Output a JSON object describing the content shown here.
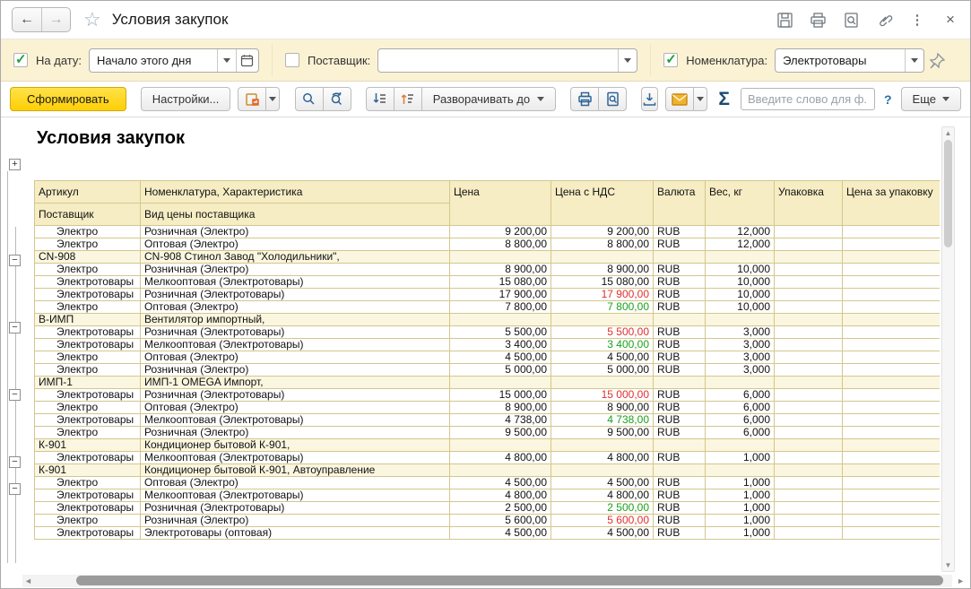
{
  "icons": {
    "back": "←",
    "forward": "→",
    "star": "☆",
    "menu": "⋮",
    "close": "×",
    "sigma": "Σ",
    "help": "?",
    "plus": "+",
    "minus": "−",
    "vscroll_up": "▲",
    "vscroll_down": "▼",
    "hscroll_left": "◄",
    "hscroll_right": "►"
  },
  "titlebar": {
    "title": "Условия закупок"
  },
  "filters": {
    "date": {
      "checked": true,
      "label": "На дату:",
      "value": "Начало этого дня"
    },
    "supplier": {
      "checked": false,
      "label": "Поставщик:",
      "value": ""
    },
    "nomenclature": {
      "checked": true,
      "label": "Номенклатура:",
      "value": "Электротовары"
    }
  },
  "toolbar": {
    "generate": "Сформировать",
    "settings": "Настройки...",
    "expand_to": "Разворачивать до",
    "search_placeholder": "Введите слово для ф...",
    "help": "?",
    "more": "Еще"
  },
  "report": {
    "title": "Условия закупок",
    "columns": [
      "Артикул",
      "Номенклатура, Характеристика",
      "Цена",
      "Цена с НДС",
      "Валюта",
      "Вес, кг",
      "Упаковка",
      "Цена за упаковку"
    ],
    "columns_row2": [
      "Поставщик",
      "Вид цены поставщика"
    ],
    "colors": {
      "red_price": "#e02f2f",
      "green_price": "#1aa11a",
      "accent_yellow": "#ffd600"
    },
    "rows": [
      {
        "t": "d",
        "c1": "Электро",
        "c2": "Розничная (Электро)",
        "price": "9 200,00",
        "vat": "9 200,00",
        "vs": "",
        "cur": "RUB",
        "w": "12,000"
      },
      {
        "t": "d",
        "c1": "Электро",
        "c2": "Оптовая (Электро)",
        "price": "8 800,00",
        "vat": "8 800,00",
        "vs": "",
        "cur": "RUB",
        "w": "12,000"
      },
      {
        "t": "g",
        "c1": "CN-908",
        "c2": "CN-908 Стинол Завод \"Холодильники\",",
        "price": "",
        "vat": "",
        "vs": "",
        "cur": "",
        "w": ""
      },
      {
        "t": "d",
        "c1": "Электро",
        "c2": "Розничная (Электро)",
        "price": "8 900,00",
        "vat": "8 900,00",
        "vs": "",
        "cur": "RUB",
        "w": "10,000"
      },
      {
        "t": "d",
        "c1": "Электротовары",
        "c2": "Мелкооптовая (Электротовары)",
        "price": "15 080,00",
        "vat": "15 080,00",
        "vs": "",
        "cur": "RUB",
        "w": "10,000"
      },
      {
        "t": "d",
        "c1": "Электротовары",
        "c2": "Розничная (Электротовары)",
        "price": "17 900,00",
        "vat": "17 900,00",
        "vs": "r",
        "cur": "RUB",
        "w": "10,000"
      },
      {
        "t": "d",
        "c1": "Электро",
        "c2": "Оптовая (Электро)",
        "price": "7 800,00",
        "vat": "7 800,00",
        "vs": "g",
        "cur": "RUB",
        "w": "10,000"
      },
      {
        "t": "g",
        "c1": "В-ИМП",
        "c2": "Вентилятор импортный,",
        "price": "",
        "vat": "",
        "vs": "",
        "cur": "",
        "w": ""
      },
      {
        "t": "d",
        "c1": "Электротовары",
        "c2": "Розничная (Электротовары)",
        "price": "5 500,00",
        "vat": "5 500,00",
        "vs": "r",
        "cur": "RUB",
        "w": "3,000"
      },
      {
        "t": "d",
        "c1": "Электротовары",
        "c2": "Мелкооптовая (Электротовары)",
        "price": "3 400,00",
        "vat": "3 400,00",
        "vs": "g",
        "cur": "RUB",
        "w": "3,000"
      },
      {
        "t": "d",
        "c1": "Электро",
        "c2": "Оптовая (Электро)",
        "price": "4 500,00",
        "vat": "4 500,00",
        "vs": "",
        "cur": "RUB",
        "w": "3,000"
      },
      {
        "t": "d",
        "c1": "Электро",
        "c2": "Розничная (Электро)",
        "price": "5 000,00",
        "vat": "5 000,00",
        "vs": "",
        "cur": "RUB",
        "w": "3,000"
      },
      {
        "t": "g",
        "c1": "ИМП-1",
        "c2": "ИМП-1 OMEGA Импорт,",
        "price": "",
        "vat": "",
        "vs": "",
        "cur": "",
        "w": ""
      },
      {
        "t": "d",
        "c1": "Электротовары",
        "c2": "Розничная (Электротовары)",
        "price": "15 000,00",
        "vat": "15 000,00",
        "vs": "r",
        "cur": "RUB",
        "w": "6,000"
      },
      {
        "t": "d",
        "c1": "Электро",
        "c2": "Оптовая (Электро)",
        "price": "8 900,00",
        "vat": "8 900,00",
        "vs": "",
        "cur": "RUB",
        "w": "6,000"
      },
      {
        "t": "d",
        "c1": "Электротовары",
        "c2": "Мелкооптовая (Электротовары)",
        "price": "4 738,00",
        "vat": "4 738,00",
        "vs": "g",
        "cur": "RUB",
        "w": "6,000"
      },
      {
        "t": "d",
        "c1": "Электро",
        "c2": "Розничная (Электро)",
        "price": "9 500,00",
        "vat": "9 500,00",
        "vs": "",
        "cur": "RUB",
        "w": "6,000"
      },
      {
        "t": "g",
        "c1": "К-901",
        "c2": "Кондиционер бытовой К-901,",
        "price": "",
        "vat": "",
        "vs": "",
        "cur": "",
        "w": ""
      },
      {
        "t": "d",
        "c1": "Электротовары",
        "c2": "Мелкооптовая (Электротовары)",
        "price": "4 800,00",
        "vat": "4 800,00",
        "vs": "",
        "cur": "RUB",
        "w": "1,000"
      },
      {
        "t": "g",
        "c1": "К-901",
        "c2": "Кондиционер бытовой К-901, Автоуправление",
        "price": "",
        "vat": "",
        "vs": "",
        "cur": "",
        "w": ""
      },
      {
        "t": "d",
        "c1": "Электро",
        "c2": "Оптовая (Электро)",
        "price": "4 500,00",
        "vat": "4 500,00",
        "vs": "",
        "cur": "RUB",
        "w": "1,000"
      },
      {
        "t": "d",
        "c1": "Электротовары",
        "c2": "Мелкооптовая (Электротовары)",
        "price": "4 800,00",
        "vat": "4 800,00",
        "vs": "",
        "cur": "RUB",
        "w": "1,000"
      },
      {
        "t": "d",
        "c1": "Электротовары",
        "c2": "Розничная (Электротовары)",
        "price": "2 500,00",
        "vat": "2 500,00",
        "vs": "g",
        "cur": "RUB",
        "w": "1,000"
      },
      {
        "t": "d",
        "c1": "Электро",
        "c2": "Розничная (Электро)",
        "price": "5 600,00",
        "vat": "5 600,00",
        "vs": "r",
        "cur": "RUB",
        "w": "1,000"
      },
      {
        "t": "d",
        "c1": "Электротовары",
        "c2": "Электротовары (оптовая)",
        "price": "4 500,00",
        "vat": "4 500,00",
        "vs": "",
        "cur": "RUB",
        "w": "1,000"
      }
    ]
  }
}
